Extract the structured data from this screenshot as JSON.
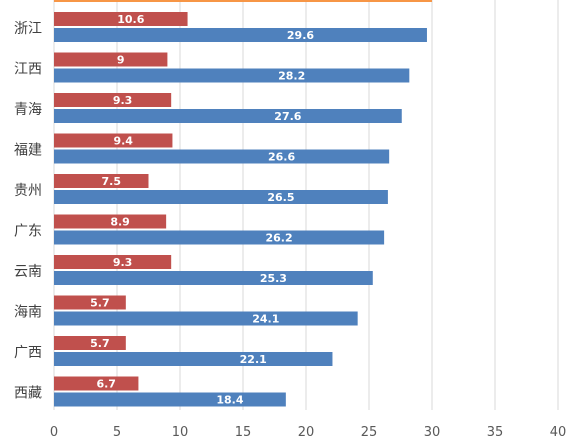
{
  "chart_data": {
    "type": "bar",
    "orientation": "horizontal",
    "categories": [
      "浙江",
      "江西",
      "青海",
      "福建",
      "贵州",
      "广东",
      "云南",
      "海南",
      "广西",
      "西藏"
    ],
    "series": [
      {
        "color": "#c0504d",
        "values": [
          10.6,
          9,
          9.3,
          9.4,
          7.5,
          8.9,
          9.3,
          5.7,
          5.7,
          6.7
        ]
      },
      {
        "color": "#4f81bd",
        "values": [
          29.6,
          28.2,
          27.6,
          26.6,
          26.5,
          26.2,
          25.3,
          24.1,
          22.1,
          18.4
        ]
      }
    ],
    "xlim": [
      0,
      40
    ],
    "xticks": [
      0,
      5,
      10,
      15,
      20,
      25,
      30,
      35,
      40
    ],
    "grid": true,
    "legend": "none",
    "top_bar_color": "#f79646",
    "top_bar_value": 30
  }
}
